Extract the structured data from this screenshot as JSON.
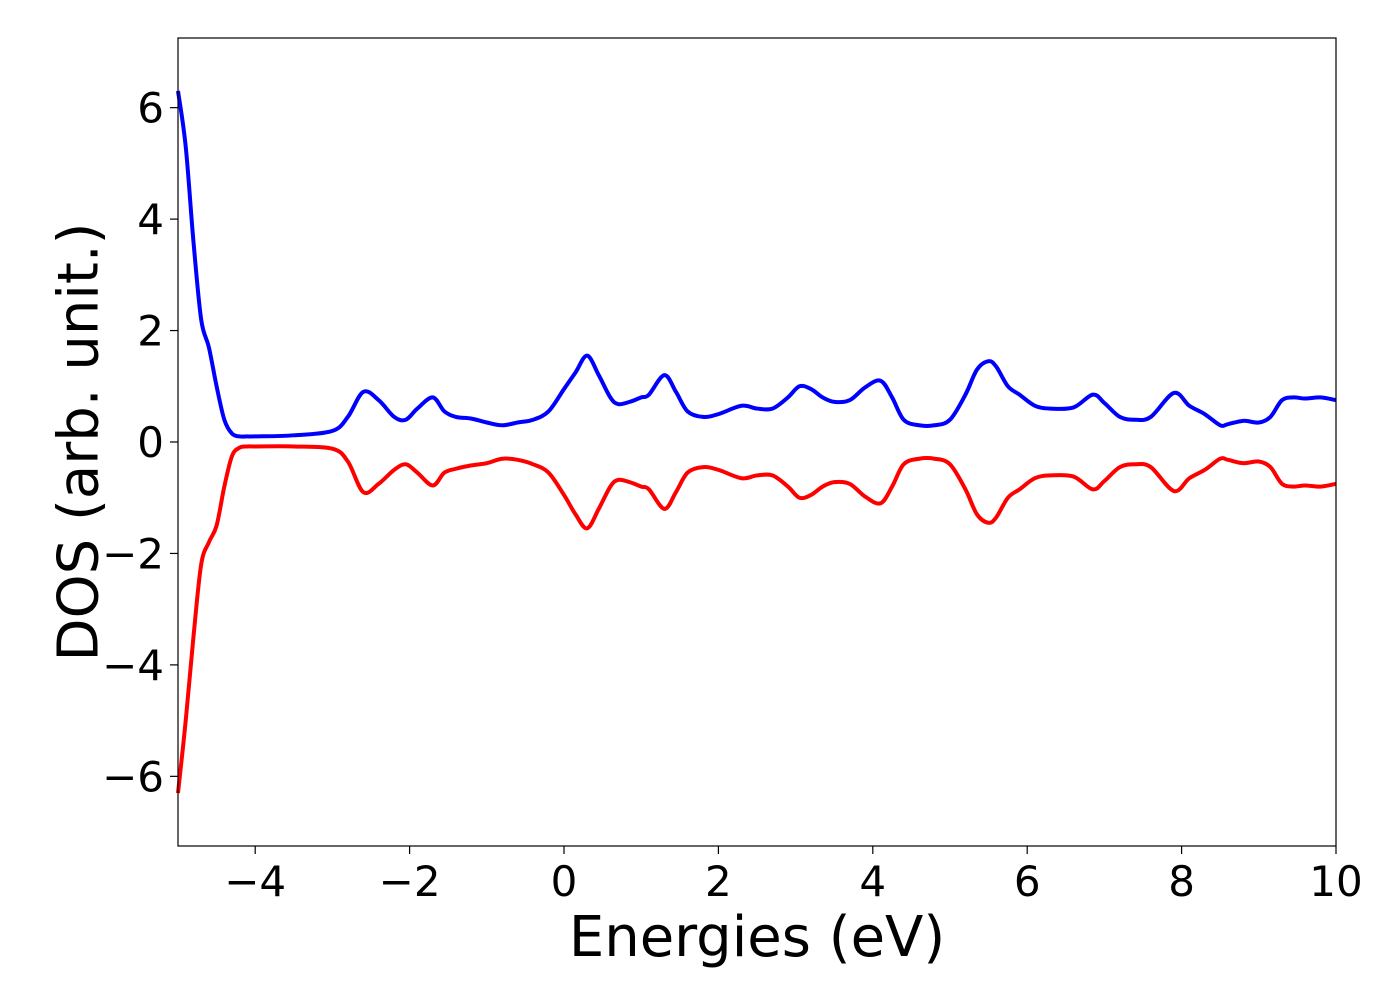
{
  "chart_data": {
    "type": "line",
    "title": "",
    "xlabel": "Energies (eV)",
    "ylabel": "DOS (arb. unit.)",
    "xlim": [
      -5,
      10
    ],
    "ylim": [
      -7.25,
      7.25
    ],
    "xticks": [
      -4,
      -2,
      0,
      2,
      4,
      6,
      8,
      10
    ],
    "xtick_labels": [
      "−4",
      "−2",
      "0",
      "2",
      "4",
      "6",
      "8",
      "10"
    ],
    "yticks": [
      -6,
      -4,
      -2,
      0,
      2,
      4,
      6
    ],
    "ytick_labels": [
      "−6",
      "−4",
      "−2",
      "0",
      "2",
      "4",
      "6"
    ],
    "grid": false,
    "legend": "none",
    "series": [
      {
        "color": "#0000ff",
        "x": [
          -5.0,
          -4.9,
          -4.8,
          -4.7,
          -4.6,
          -4.5,
          -4.4,
          -4.3,
          -4.2,
          -4.1,
          -4.0,
          -3.5,
          -3.0,
          -2.8,
          -2.6,
          -2.4,
          -2.2,
          -2.05,
          -1.9,
          -1.7,
          -1.55,
          -1.4,
          -1.2,
          -1.0,
          -0.8,
          -0.6,
          -0.4,
          -0.2,
          0.0,
          0.15,
          0.3,
          0.45,
          0.6,
          0.7,
          0.85,
          1.0,
          1.1,
          1.3,
          1.45,
          1.6,
          1.8,
          2.0,
          2.3,
          2.5,
          2.7,
          2.9,
          3.05,
          3.2,
          3.35,
          3.5,
          3.7,
          3.9,
          4.1,
          4.25,
          4.4,
          4.6,
          4.8,
          5.0,
          5.2,
          5.35,
          5.5,
          5.6,
          5.75,
          5.9,
          6.1,
          6.3,
          6.6,
          6.85,
          7.0,
          7.2,
          7.4,
          7.6,
          7.9,
          8.1,
          8.3,
          8.5,
          8.6,
          8.8,
          9.0,
          9.15,
          9.3,
          9.45,
          9.6,
          9.8,
          10.0
        ],
        "values": [
          6.3,
          5.3,
          3.6,
          2.2,
          1.7,
          1.0,
          0.4,
          0.15,
          0.1,
          0.1,
          0.1,
          0.12,
          0.2,
          0.45,
          0.9,
          0.75,
          0.45,
          0.4,
          0.6,
          0.8,
          0.55,
          0.45,
          0.42,
          0.35,
          0.3,
          0.35,
          0.4,
          0.55,
          0.95,
          1.25,
          1.55,
          1.2,
          0.8,
          0.68,
          0.72,
          0.8,
          0.85,
          1.2,
          0.9,
          0.55,
          0.45,
          0.5,
          0.65,
          0.6,
          0.6,
          0.8,
          1.0,
          0.95,
          0.8,
          0.72,
          0.75,
          0.98,
          1.1,
          0.8,
          0.4,
          0.3,
          0.3,
          0.4,
          0.85,
          1.3,
          1.45,
          1.35,
          1.0,
          0.85,
          0.65,
          0.6,
          0.62,
          0.85,
          0.7,
          0.45,
          0.4,
          0.45,
          0.88,
          0.65,
          0.5,
          0.3,
          0.32,
          0.38,
          0.35,
          0.45,
          0.75,
          0.8,
          0.78,
          0.8,
          0.75
        ]
      },
      {
        "color": "#ff0000",
        "x": [
          -5.0,
          -4.9,
          -4.8,
          -4.7,
          -4.6,
          -4.5,
          -4.4,
          -4.3,
          -4.2,
          -4.1,
          -4.0,
          -3.5,
          -3.0,
          -2.8,
          -2.6,
          -2.4,
          -2.2,
          -2.05,
          -1.9,
          -1.7,
          -1.55,
          -1.4,
          -1.2,
          -1.0,
          -0.8,
          -0.6,
          -0.4,
          -0.2,
          0.0,
          0.15,
          0.3,
          0.45,
          0.6,
          0.7,
          0.85,
          1.0,
          1.1,
          1.3,
          1.45,
          1.6,
          1.8,
          2.0,
          2.3,
          2.5,
          2.7,
          2.9,
          3.05,
          3.2,
          3.35,
          3.5,
          3.7,
          3.9,
          4.1,
          4.25,
          4.4,
          4.6,
          4.8,
          5.0,
          5.2,
          5.35,
          5.5,
          5.6,
          5.75,
          5.9,
          6.1,
          6.3,
          6.6,
          6.85,
          7.0,
          7.2,
          7.4,
          7.6,
          7.9,
          8.1,
          8.3,
          8.5,
          8.6,
          8.8,
          9.0,
          9.15,
          9.3,
          9.45,
          9.6,
          9.8,
          10.0
        ],
        "values": [
          -6.3,
          -5.0,
          -3.5,
          -2.2,
          -1.8,
          -1.5,
          -0.8,
          -0.25,
          -0.1,
          -0.08,
          -0.08,
          -0.08,
          -0.12,
          -0.35,
          -0.9,
          -0.75,
          -0.5,
          -0.4,
          -0.55,
          -0.78,
          -0.55,
          -0.48,
          -0.42,
          -0.38,
          -0.3,
          -0.32,
          -0.4,
          -0.55,
          -0.95,
          -1.3,
          -1.55,
          -1.2,
          -0.8,
          -0.68,
          -0.72,
          -0.8,
          -0.85,
          -1.2,
          -0.9,
          -0.55,
          -0.45,
          -0.5,
          -0.65,
          -0.6,
          -0.6,
          -0.8,
          -1.0,
          -0.95,
          -0.8,
          -0.72,
          -0.75,
          -0.98,
          -1.1,
          -0.8,
          -0.4,
          -0.3,
          -0.3,
          -0.4,
          -0.85,
          -1.3,
          -1.45,
          -1.35,
          -1.0,
          -0.85,
          -0.65,
          -0.6,
          -0.62,
          -0.85,
          -0.7,
          -0.45,
          -0.4,
          -0.45,
          -0.88,
          -0.65,
          -0.5,
          -0.3,
          -0.32,
          -0.38,
          -0.35,
          -0.45,
          -0.75,
          -0.8,
          -0.78,
          -0.8,
          -0.75
        ]
      }
    ]
  }
}
